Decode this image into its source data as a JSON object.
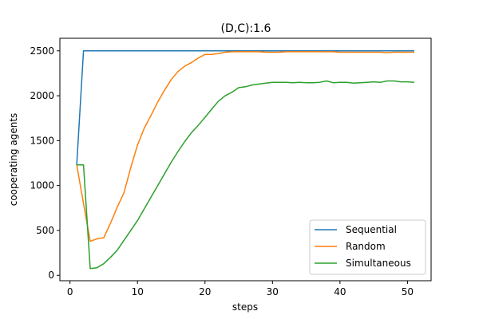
{
  "chart_data": {
    "type": "line",
    "title": "(D,C):1.6",
    "xlabel": "steps",
    "ylabel": "cooperating agents",
    "xlim": [
      -1.5,
      53.5
    ],
    "ylim": [
      -60,
      2640
    ],
    "xticks": [
      0,
      10,
      20,
      30,
      40,
      50
    ],
    "yticks": [
      0,
      500,
      1000,
      1500,
      2000,
      2500
    ],
    "grid": false,
    "legend_position": "lower-right",
    "series": [
      {
        "name": "Sequential",
        "color": "#1f77b4",
        "x": [
          1,
          2,
          3,
          4,
          5,
          6,
          7,
          8,
          9,
          10,
          11,
          12,
          13,
          14,
          15,
          16,
          17,
          18,
          19,
          20,
          21,
          22,
          23,
          24,
          25,
          26,
          27,
          28,
          29,
          30,
          31,
          32,
          33,
          34,
          35,
          36,
          37,
          38,
          39,
          40,
          41,
          42,
          43,
          44,
          45,
          46,
          47,
          48,
          49,
          50,
          51
        ],
        "y": [
          1230,
          2500,
          2500,
          2500,
          2500,
          2500,
          2500,
          2500,
          2500,
          2500,
          2500,
          2500,
          2500,
          2500,
          2500,
          2500,
          2500,
          2500,
          2500,
          2500,
          2500,
          2500,
          2500,
          2500,
          2500,
          2500,
          2500,
          2500,
          2500,
          2500,
          2500,
          2500,
          2500,
          2500,
          2500,
          2500,
          2500,
          2500,
          2500,
          2500,
          2500,
          2500,
          2500,
          2500,
          2500,
          2500,
          2500,
          2500,
          2500,
          2500,
          2500
        ]
      },
      {
        "name": "Random",
        "color": "#ff7f0e",
        "x": [
          1,
          2,
          3,
          4,
          5,
          6,
          7,
          8,
          9,
          10,
          11,
          12,
          13,
          14,
          15,
          16,
          17,
          18,
          19,
          20,
          21,
          22,
          23,
          24,
          25,
          26,
          27,
          28,
          29,
          30,
          31,
          32,
          33,
          34,
          35,
          36,
          37,
          38,
          39,
          40,
          41,
          42,
          43,
          44,
          45,
          46,
          47,
          48,
          49,
          50,
          51
        ],
        "y": [
          1230,
          800,
          380,
          405,
          420,
          580,
          760,
          920,
          1200,
          1450,
          1640,
          1780,
          1930,
          2060,
          2180,
          2270,
          2330,
          2370,
          2420,
          2460,
          2460,
          2470,
          2485,
          2490,
          2490,
          2490,
          2490,
          2490,
          2485,
          2485,
          2485,
          2490,
          2490,
          2490,
          2490,
          2490,
          2490,
          2490,
          2490,
          2485,
          2485,
          2485,
          2485,
          2485,
          2485,
          2485,
          2480,
          2485,
          2485,
          2485,
          2485
        ]
      },
      {
        "name": "Simultaneous",
        "color": "#2ca02c",
        "x": [
          1,
          2,
          3,
          4,
          5,
          6,
          7,
          8,
          9,
          10,
          11,
          12,
          13,
          14,
          15,
          16,
          17,
          18,
          19,
          20,
          21,
          22,
          23,
          24,
          25,
          26,
          27,
          28,
          29,
          30,
          31,
          32,
          33,
          34,
          35,
          36,
          37,
          38,
          39,
          40,
          41,
          42,
          43,
          44,
          45,
          46,
          47,
          48,
          49,
          50,
          51
        ],
        "y": [
          1230,
          1230,
          75,
          85,
          130,
          200,
          280,
          390,
          500,
          610,
          740,
          870,
          1000,
          1130,
          1260,
          1380,
          1490,
          1590,
          1670,
          1760,
          1850,
          1940,
          2000,
          2040,
          2090,
          2100,
          2120,
          2130,
          2140,
          2150,
          2150,
          2150,
          2145,
          2150,
          2145,
          2145,
          2150,
          2165,
          2145,
          2150,
          2150,
          2140,
          2145,
          2150,
          2155,
          2150,
          2165,
          2165,
          2155,
          2155,
          2150
        ]
      }
    ]
  }
}
